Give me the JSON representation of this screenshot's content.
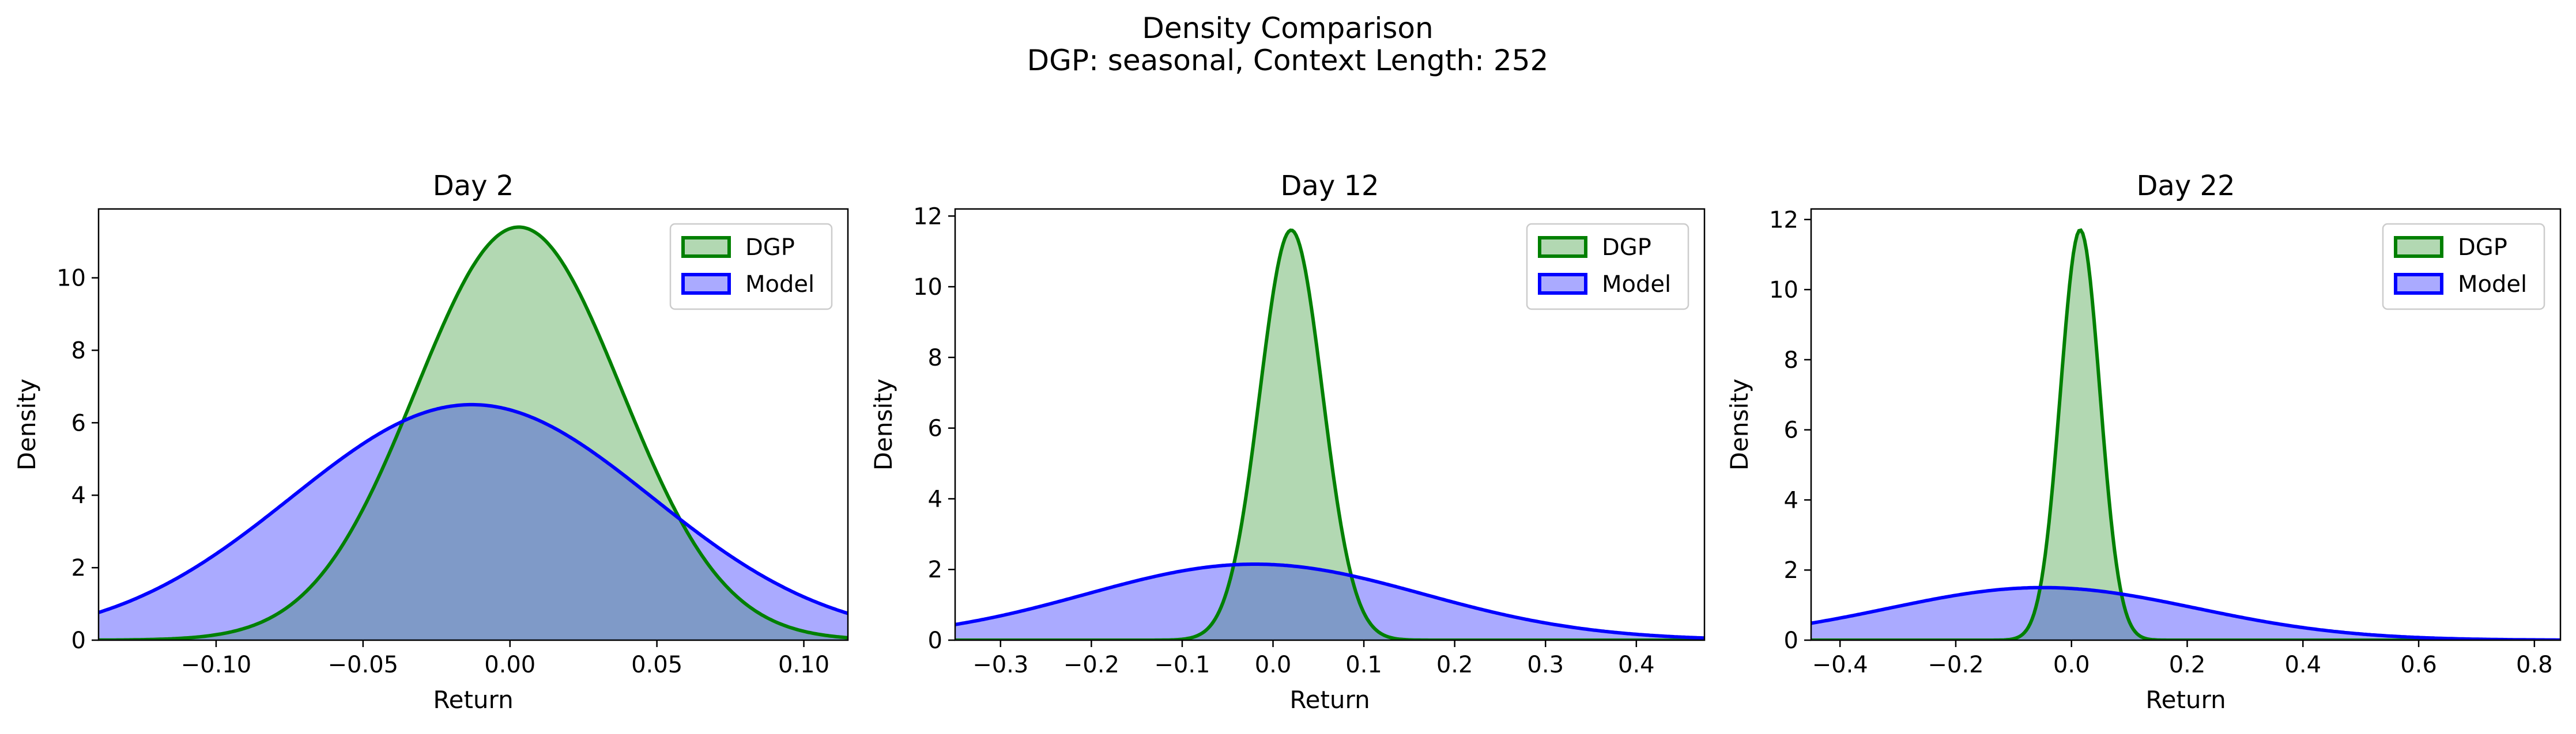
{
  "figure": {
    "title": "Density Comparison",
    "subtitle": "DGP: seasonal, Context Length: 252"
  },
  "colors": {
    "dgp_line": "#008000",
    "dgp_fill": "#b2d8b2",
    "model_line": "#0000ff",
    "model_fill": "#aaaaff",
    "overlap_fill": "#7f9ac8"
  },
  "chart_data": [
    {
      "type": "area",
      "title": "Day 2",
      "xlabel": "Return",
      "ylabel": "Density",
      "xlim": [
        -0.14,
        0.115
      ],
      "ylim": [
        0,
        11.9
      ],
      "xticks": [
        -0.1,
        -0.05,
        0.0,
        0.05,
        0.1
      ],
      "xtick_labels": [
        "−0.10",
        "−0.05",
        "0.00",
        "0.05",
        "0.10"
      ],
      "yticks": [
        0,
        2,
        4,
        6,
        8,
        10
      ],
      "ytick_labels": [
        "0",
        "2",
        "4",
        "6",
        "8",
        "10"
      ],
      "legend": "top-right",
      "series": [
        {
          "name": "DGP",
          "mean": 0.003,
          "peak": 11.4
        },
        {
          "name": "Model",
          "mean": -0.013,
          "peak": 6.5
        }
      ]
    },
    {
      "type": "area",
      "title": "Day 12",
      "xlabel": "Return",
      "ylabel": "Density",
      "xlim": [
        -0.35,
        0.475
      ],
      "ylim": [
        0,
        12.2
      ],
      "xticks": [
        -0.3,
        -0.2,
        -0.1,
        0.0,
        0.1,
        0.2,
        0.3,
        0.4
      ],
      "xtick_labels": [
        "−0.3",
        "−0.2",
        "−0.1",
        "0.0",
        "0.1",
        "0.2",
        "0.3",
        "0.4"
      ],
      "yticks": [
        0,
        2,
        4,
        6,
        8,
        10,
        12
      ],
      "ytick_labels": [
        "0",
        "2",
        "4",
        "6",
        "8",
        "10",
        "12"
      ],
      "legend": "top-right",
      "series": [
        {
          "name": "DGP",
          "mean": 0.02,
          "peak": 11.6
        },
        {
          "name": "Model",
          "mean": -0.02,
          "peak": 2.15
        }
      ]
    },
    {
      "type": "area",
      "title": "Day 22",
      "xlabel": "Return",
      "ylabel": "Density",
      "xlim": [
        -0.45,
        0.845
      ],
      "ylim": [
        0,
        12.3
      ],
      "xticks": [
        -0.4,
        -0.2,
        0.0,
        0.2,
        0.4,
        0.6,
        0.8
      ],
      "xtick_labels": [
        "−0.4",
        "−0.2",
        "0.0",
        "0.2",
        "0.4",
        "0.6",
        "0.8"
      ],
      "yticks": [
        0,
        2,
        4,
        6,
        8,
        10,
        12
      ],
      "ytick_labels": [
        "0",
        "2",
        "4",
        "6",
        "8",
        "10",
        "12"
      ],
      "legend": "top-right",
      "series": [
        {
          "name": "DGP",
          "mean": 0.015,
          "peak": 11.7
        },
        {
          "name": "Model",
          "mean": -0.05,
          "peak": 1.5
        }
      ]
    }
  ]
}
